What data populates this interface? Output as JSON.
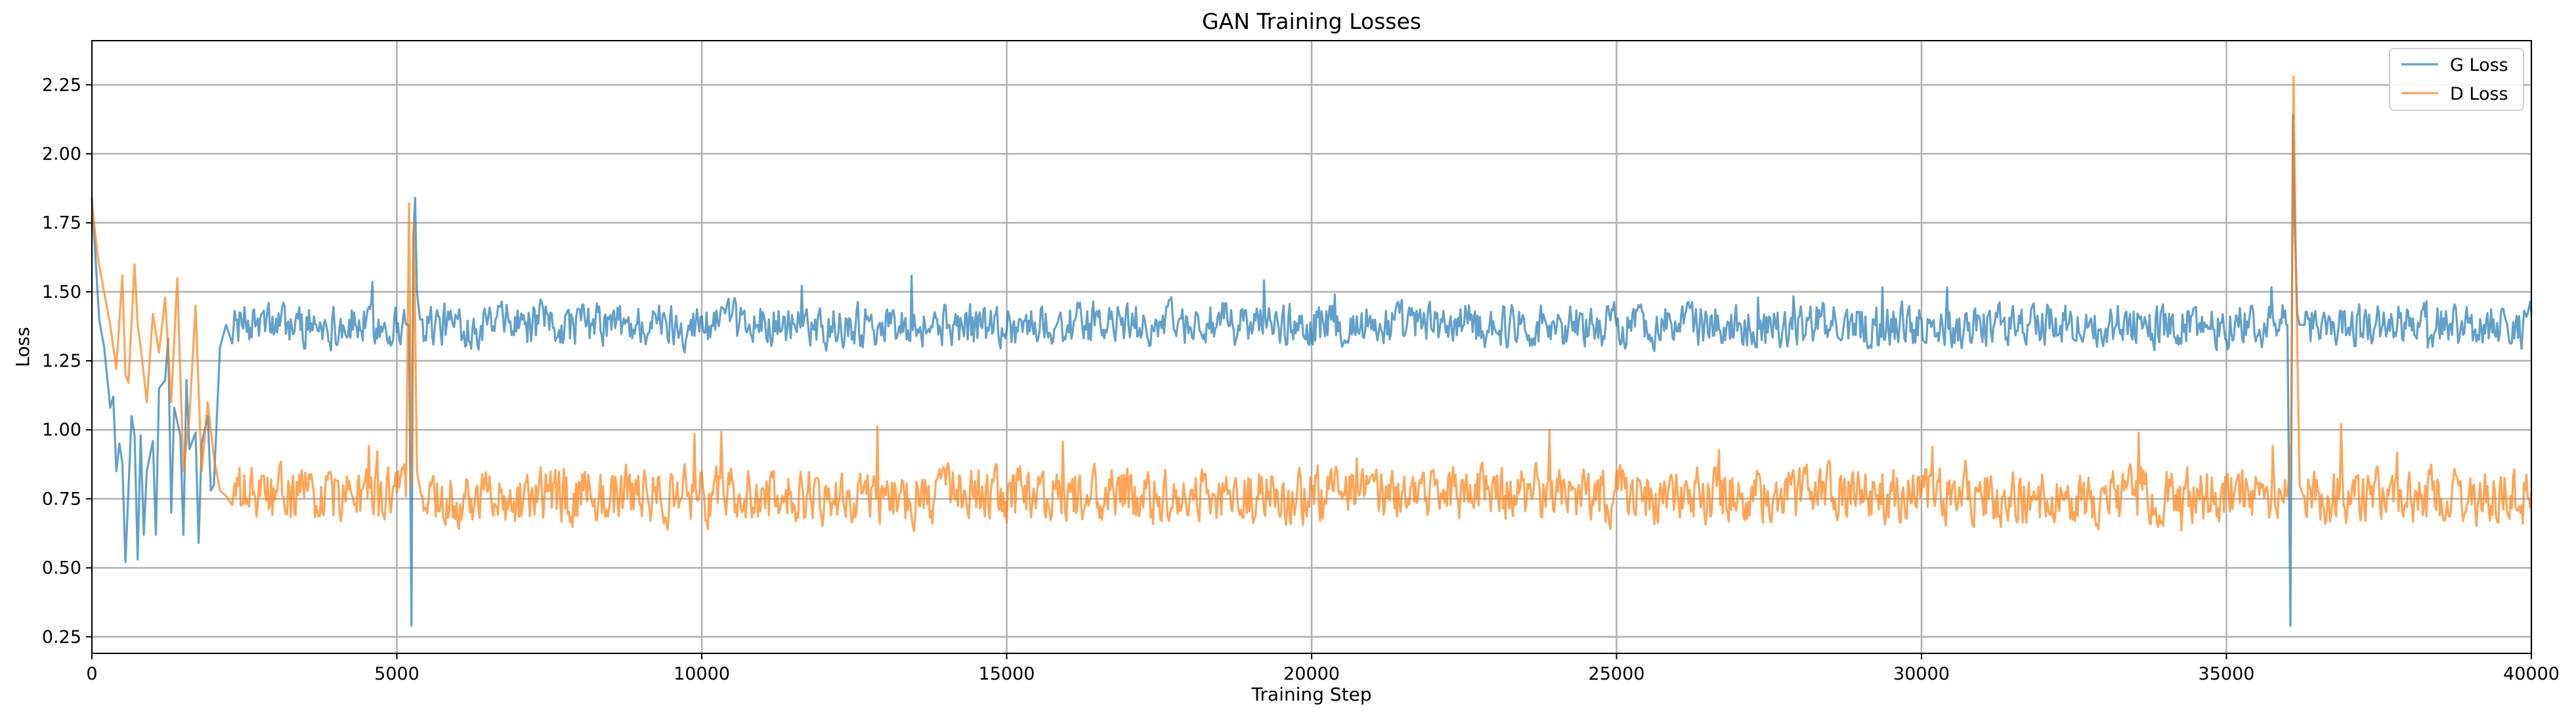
{
  "chart_data": {
    "type": "line",
    "title": "GAN Training Losses",
    "xlabel": "Training Step",
    "ylabel": "Loss",
    "xlim": [
      0,
      40000
    ],
    "ylim": [
      0.19,
      2.41
    ],
    "xticks": [
      0,
      5000,
      10000,
      15000,
      20000,
      25000,
      30000,
      35000,
      40000
    ],
    "yticks": [
      0.25,
      0.5,
      0.75,
      1.0,
      1.25,
      1.5,
      1.75,
      2.0,
      2.25
    ],
    "grid": true,
    "legend_position": "top-right",
    "series": [
      {
        "name": "G Loss",
        "color": "#1f77b4",
        "opacity": 0.7,
        "baseline": 1.38,
        "noise": 0.07,
        "points": [
          [
            0,
            1.84
          ],
          [
            120,
            1.4
          ],
          [
            200,
            1.3
          ],
          [
            300,
            1.08
          ],
          [
            350,
            1.12
          ],
          [
            400,
            0.85
          ],
          [
            450,
            0.95
          ],
          [
            500,
            0.88
          ],
          [
            550,
            0.52
          ],
          [
            650,
            1.05
          ],
          [
            700,
            0.98
          ],
          [
            750,
            0.53
          ],
          [
            800,
            0.98
          ],
          [
            850,
            0.62
          ],
          [
            900,
            0.85
          ],
          [
            1000,
            0.96
          ],
          [
            1050,
            0.62
          ],
          [
            1100,
            1.15
          ],
          [
            1200,
            1.18
          ],
          [
            1250,
            1.33
          ],
          [
            1300,
            0.7
          ],
          [
            1350,
            1.08
          ],
          [
            1450,
            0.98
          ],
          [
            1500,
            0.62
          ],
          [
            1550,
            1.18
          ],
          [
            1600,
            0.93
          ],
          [
            1700,
            0.99
          ],
          [
            1750,
            0.59
          ],
          [
            1800,
            0.95
          ],
          [
            1900,
            1.05
          ],
          [
            1950,
            0.78
          ],
          [
            2000,
            0.8
          ],
          [
            2100,
            1.3
          ],
          [
            2200,
            1.38
          ],
          [
            2300,
            1.38
          ],
          [
            5200,
            1.38
          ],
          [
            5240,
            0.29
          ],
          [
            5270,
            1.7
          ],
          [
            5300,
            1.84
          ],
          [
            5330,
            1.5
          ],
          [
            5380,
            1.4
          ],
          [
            36000,
            1.38
          ],
          [
            36050,
            0.29
          ],
          [
            36090,
            2.14
          ],
          [
            36120,
            1.75
          ],
          [
            36160,
            1.42
          ],
          [
            36200,
            1.38
          ],
          [
            40000,
            1.38
          ]
        ]
      },
      {
        "name": "D Loss",
        "color": "#ff7f0e",
        "opacity": 0.7,
        "baseline": 0.76,
        "noise": 0.09,
        "points": [
          [
            0,
            1.82
          ],
          [
            100,
            1.62
          ],
          [
            200,
            1.5
          ],
          [
            300,
            1.38
          ],
          [
            400,
            1.22
          ],
          [
            500,
            1.56
          ],
          [
            550,
            1.2
          ],
          [
            600,
            1.17
          ],
          [
            700,
            1.6
          ],
          [
            750,
            1.38
          ],
          [
            800,
            1.3
          ],
          [
            900,
            1.1
          ],
          [
            1000,
            1.42
          ],
          [
            1100,
            1.28
          ],
          [
            1200,
            1.48
          ],
          [
            1300,
            1.1
          ],
          [
            1400,
            1.55
          ],
          [
            1450,
            1.2
          ],
          [
            1500,
            0.85
          ],
          [
            1600,
            1.05
          ],
          [
            1700,
            1.45
          ],
          [
            1800,
            0.85
          ],
          [
            1900,
            1.1
          ],
          [
            2000,
            0.9
          ],
          [
            2100,
            0.78
          ],
          [
            2200,
            0.76
          ],
          [
            5150,
            0.76
          ],
          [
            5200,
            1.82
          ],
          [
            5240,
            0.8
          ],
          [
            5280,
            1.75
          ],
          [
            5330,
            0.85
          ],
          [
            5400,
            0.76
          ],
          [
            36000,
            0.76
          ],
          [
            36060,
            0.95
          ],
          [
            36100,
            2.28
          ],
          [
            36140,
            1.6
          ],
          [
            36200,
            0.8
          ],
          [
            36260,
            0.76
          ],
          [
            40000,
            0.7
          ]
        ]
      }
    ],
    "annotations": []
  }
}
